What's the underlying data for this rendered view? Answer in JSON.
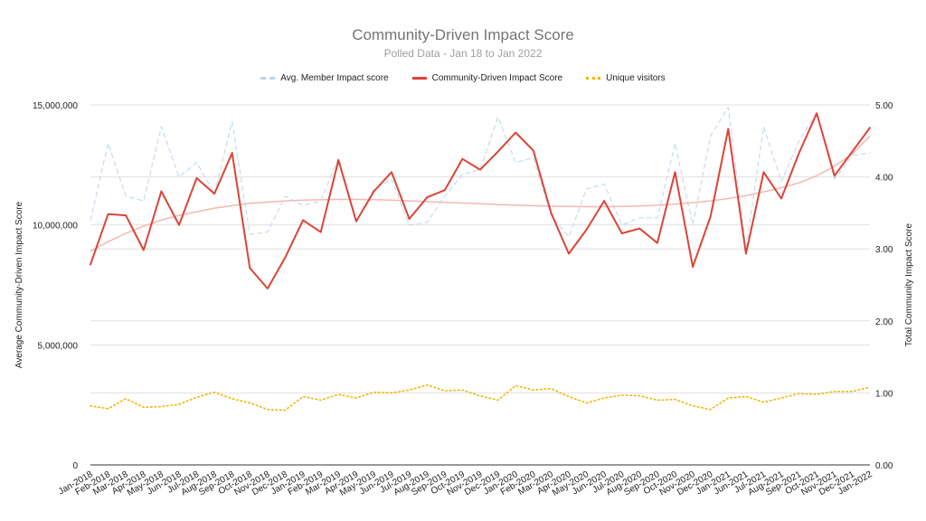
{
  "colors": {
    "avg_member": "#bcd5ea",
    "community": "#db4437",
    "visitors": "#f4b400",
    "trend": "#f4b8b1",
    "grid": "#e0e0e0"
  },
  "legend_position": "top",
  "grid": true,
  "chart_data": {
    "type": "line",
    "title": "Community-Driven Impact Score",
    "subtitle": "Polled Data - Jan 18 to Jan 2022",
    "ylabel": "Average Community-Driven Impact Score",
    "ylabel_right": "Total Community Impact Score",
    "ylim": [
      0,
      15000000
    ],
    "ylim_right": [
      0,
      5
    ],
    "yticks": [
      "0",
      "5,000,000",
      "10,000,000",
      "15,000,000"
    ],
    "yticks_right": [
      "0.00",
      "1.00",
      "2.00",
      "3.00",
      "4.00",
      "5.00"
    ],
    "categories": [
      "Jan-2018",
      "Feb-2018",
      "Mar-2018",
      "Apr-2018",
      "May-2018",
      "Jun-2018",
      "Jul-2018",
      "Aug-2018",
      "Sep-2018",
      "Oct-2018",
      "Nov-2018",
      "Dec-2018",
      "Jan-2019",
      "Feb-2019",
      "Mar-2019",
      "Apr-2019",
      "May-2019",
      "Jun-2019",
      "Jul-2019",
      "Aug-2019",
      "Sep-2019",
      "Oct-2019",
      "Nov-2019",
      "Dec-2019",
      "Jan-2020",
      "Feb-2020",
      "Mar-2020",
      "Apr-2020",
      "May-2020",
      "Jun-2020",
      "Jul-2020",
      "Aug-2020",
      "Sep-2020",
      "Oct-2020",
      "Nov-2020",
      "Dec-2020",
      "Jan-2021",
      "Jun-2021",
      "Jul-2021",
      "Aug-2021",
      "Sep-2021",
      "Oct-2021",
      "Nov-2021",
      "Dec-2021",
      "Jan-2022"
    ],
    "series": [
      {
        "name": "Avg. Member Impact score",
        "axis": "left",
        "style": "dashed",
        "values": [
          10200000,
          13400000,
          11200000,
          11000000,
          14100000,
          12000000,
          12600000,
          11300000,
          14300000,
          9600000,
          9700000,
          11200000,
          10800000,
          11000000,
          12800000,
          10100000,
          11500000,
          11900000,
          10000000,
          10100000,
          11200000,
          12100000,
          12300000,
          14500000,
          12600000,
          12800000,
          10400000,
          9500000,
          11500000,
          11700000,
          10000000,
          10300000,
          10300000,
          13400000,
          10000000,
          13700000,
          14900000,
          9000000,
          14100000,
          11800000,
          13500000,
          14700000,
          11900000,
          12900000,
          13000000
        ]
      },
      {
        "name": "Community-Driven Impact Score",
        "axis": "left",
        "style": "solid",
        "values": [
          8350000,
          10450000,
          10400000,
          8950000,
          11400000,
          10000000,
          11950000,
          11300000,
          13000000,
          8200000,
          7350000,
          8650000,
          10200000,
          9700000,
          12700000,
          10150000,
          11400000,
          12200000,
          10250000,
          11150000,
          11450000,
          12750000,
          12300000,
          13050000,
          13850000,
          13100000,
          10500000,
          8800000,
          9800000,
          11000000,
          9650000,
          9850000,
          9250000,
          12200000,
          8250000,
          10350000,
          14000000,
          8800000,
          12200000,
          11100000,
          13000000,
          14650000,
          12050000,
          13050000,
          14050000
        ]
      },
      {
        "name": "Unique visitors",
        "axis": "right",
        "style": "dotted",
        "values": [
          0.82,
          0.78,
          0.92,
          0.8,
          0.81,
          0.84,
          0.94,
          1.01,
          0.92,
          0.86,
          0.77,
          0.76,
          0.95,
          0.9,
          0.98,
          0.93,
          1.01,
          1.0,
          1.04,
          1.11,
          1.03,
          1.04,
          0.96,
          0.9,
          1.1,
          1.04,
          1.06,
          0.95,
          0.86,
          0.93,
          0.97,
          0.96,
          0.9,
          0.91,
          0.82,
          0.77,
          0.93,
          0.95,
          0.87,
          0.93,
          0.99,
          0.98,
          1.02,
          1.02,
          1.08
        ]
      }
    ],
    "trendline": {
      "series": "Community-Driven Impact Score",
      "values": [
        8900000,
        9300000,
        9650000,
        9950000,
        10200000,
        10400000,
        10550000,
        10700000,
        10800000,
        10900000,
        10950000,
        11000000,
        11030000,
        11050000,
        11060000,
        11060000,
        11050000,
        11030000,
        11000000,
        10970000,
        10940000,
        10910000,
        10880000,
        10850000,
        10820000,
        10800000,
        10780000,
        10770000,
        10760000,
        10760000,
        10770000,
        10790000,
        10820000,
        10870000,
        10930000,
        11000000,
        11100000,
        11220000,
        11380000,
        11550000,
        11750000,
        12050000,
        12450000,
        12950000,
        13700000
      ]
    }
  }
}
